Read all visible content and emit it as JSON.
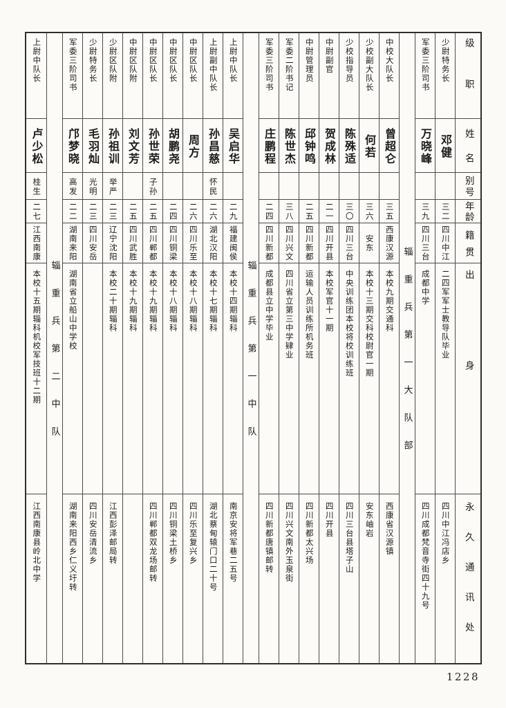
{
  "page": {
    "number": "1228"
  },
  "table": {
    "attribute_labels": [
      "级职",
      "姓名",
      "别号",
      "年龄",
      "籍贯",
      "出身",
      "永久通讯处"
    ],
    "columns": [
      {
        "type": "header"
      },
      {
        "type": "person",
        "rank": "少尉特务长",
        "name": "邓健",
        "alias": "",
        "age": "三二",
        "native_place": "四川中江",
        "origin": "二四军军士教导队毕业",
        "address": "四川中江冯店乡"
      },
      {
        "type": "person",
        "rank": "军委三阶司书",
        "name": "万晓峰",
        "alias": "",
        "age": "三九",
        "native_place": "四川三台",
        "origin": "成都中学",
        "address": "四川成都梵音寺街四十九号"
      },
      {
        "type": "group",
        "label": "辎重兵第一大队部"
      },
      {
        "type": "person",
        "rank": "中校大队长",
        "name": "曾超仑",
        "alias": "",
        "age": "三五",
        "native_place": "西康汉源",
        "origin": "本校九期交通科",
        "address": "西康省汉源镇"
      },
      {
        "type": "person",
        "rank": "少校副大队长",
        "name": "何若",
        "alias": "",
        "age": "三六",
        "native_place": "安东",
        "origin": "本校十三期交科校尉官一期",
        "address": "安东岫岩"
      },
      {
        "type": "person",
        "rank": "少校指导员",
        "name": "陈殊适",
        "alias": "",
        "age": "三〇",
        "native_place": "四川三台",
        "origin": "中央训练团本校将校训练班",
        "address": "四川三台县塔子山"
      },
      {
        "type": "person",
        "rank": "中尉副官",
        "name": "贺成林",
        "alias": "",
        "age": "二一",
        "native_place": "四川开县",
        "origin": "本校军官十一期",
        "address": "四川开县"
      },
      {
        "type": "person",
        "rank": "中尉管理员",
        "name": "邱钟鸣",
        "alias": "",
        "age": "二五",
        "native_place": "四川新都",
        "origin": "运输人员训练所机务班",
        "address": "四川新都太兴场"
      },
      {
        "type": "person",
        "rank": "军委二阶书记",
        "name": "陈世杰",
        "alias": "",
        "age": "三八",
        "native_place": "四川兴文",
        "origin": "四川省立第三中学肄业",
        "address": "四川兴文南外玉泉街"
      },
      {
        "type": "person",
        "rank": "军委三阶司书",
        "name": "庄鹏程",
        "alias": "",
        "age": "二四",
        "native_place": "四川新都",
        "origin": "成都县立中学毕业",
        "address": "四川新都唐镇邮转"
      },
      {
        "type": "group",
        "label": "辎重兵第一中队"
      },
      {
        "type": "person",
        "rank": "上尉中队长",
        "name": "吴启华",
        "alias": "",
        "age": "二九",
        "native_place": "福建闽侯",
        "origin": "本校十四期辎科",
        "address": "南京安将军巷二五号"
      },
      {
        "type": "person",
        "rank": "上尉副中队长",
        "name": "孙昌慈",
        "alias": "怀民",
        "age": "二六",
        "native_place": "湖北汉阳",
        "origin": "本校十七期辎科",
        "address": "湖北蔡甸辕门口二十号"
      },
      {
        "type": "person",
        "rank": "中尉区队长",
        "name": "周方",
        "alias": "",
        "age": "二六",
        "native_place": "四川乐至",
        "origin": "本校十八期辎科",
        "address": "四川乐至复兴乡"
      },
      {
        "type": "person",
        "rank": "中尉区队长",
        "name": "胡鹏尧",
        "alias": "",
        "age": "二四",
        "native_place": "四川铜梁",
        "origin": "本校十八期辎科",
        "address": "四川铜梁土桥乡"
      },
      {
        "type": "person",
        "rank": "中尉区队长",
        "name": "孙世荣",
        "alias": "子孙",
        "age": "二五",
        "native_place": "四川郸都",
        "origin": "本校十九期辎科",
        "address": "四川郸都双龙场邮转"
      },
      {
        "type": "person",
        "rank": "中尉区队附",
        "name": "刘文芳",
        "alias": "",
        "age": "二五",
        "native_place": "四川武胜",
        "origin": "本校十九期辎科",
        "address": ""
      },
      {
        "type": "person",
        "rank": "少尉区队附",
        "name": "孙祖训",
        "alias": "举严",
        "age": "二三",
        "native_place": "辽宁沈阳",
        "origin": "本校二十期辎科",
        "address": "江西彭泽邮局转"
      },
      {
        "type": "person",
        "rank": "少尉特务长",
        "name": "毛羽灿",
        "alias": "光明",
        "age": "二三",
        "native_place": "四川安岳",
        "origin": "",
        "address": "四川安岳清流乡"
      },
      {
        "type": "person",
        "rank": "军委三阶司书",
        "name": "邝梦晓",
        "alias": "高发",
        "age": "二二",
        "native_place": "湖南来阳",
        "origin": "湖南省立船山中学校",
        "address": "湖南来阳西乡仁义圩转"
      },
      {
        "type": "group",
        "label": "辎重兵第二中队"
      },
      {
        "type": "person",
        "rank": "上尉中队长",
        "name": "卢少松",
        "alias": "桂生",
        "age": "二七",
        "native_place": "江西南康",
        "origin": "本校十五期辎科机校军技班十二期",
        "address": "江西南康县岭北中学"
      }
    ]
  }
}
